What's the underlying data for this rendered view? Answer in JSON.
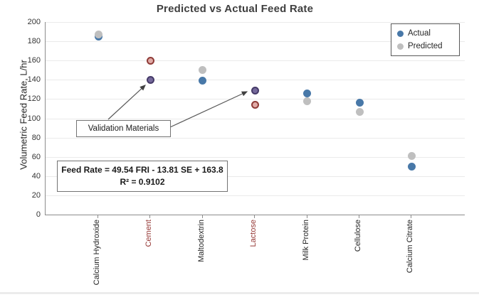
{
  "chart_data": {
    "type": "scatter",
    "title": "Predicted vs Actual Feed Rate",
    "xlabel": "",
    "ylabel": "Volumetric Feed Rate, L/hr",
    "ylim": [
      0,
      200
    ],
    "ytick_step": 20,
    "grid": true,
    "legend_position": "top-right",
    "categories": [
      "Calcium Hydroxide",
      "Cement",
      "Maltodextrin",
      "Lactose",
      "Milk Protein",
      "Cellulose",
      "Calcium Citrate"
    ],
    "validation_categories": [
      "Cement",
      "Lactose"
    ],
    "series": [
      {
        "name": "Actual",
        "color": "#4878a8",
        "values": [
          185,
          140,
          139,
          129,
          126,
          116,
          50
        ]
      },
      {
        "name": "Predicted",
        "color": "#bfbfbf",
        "values": [
          187,
          160,
          150,
          114,
          118,
          107,
          61
        ]
      }
    ],
    "validation_styles": {
      "actual": {
        "fill": "#75699b",
        "border": "#453a68"
      },
      "predicted": {
        "fill": "#e0aaa6",
        "border": "#8f3b37"
      }
    },
    "annotations": {
      "validation_label": "Validation Materials",
      "equation_line1": "Feed Rate = 49.54 FRI - 13.81 SE + 163.8",
      "equation_line2": "R² = 0.9102"
    }
  },
  "colors": {
    "axis": "#8c8c8c",
    "gridline": "#eaeaea",
    "validation_label_color": "#953735",
    "arrow": "#595959"
  }
}
